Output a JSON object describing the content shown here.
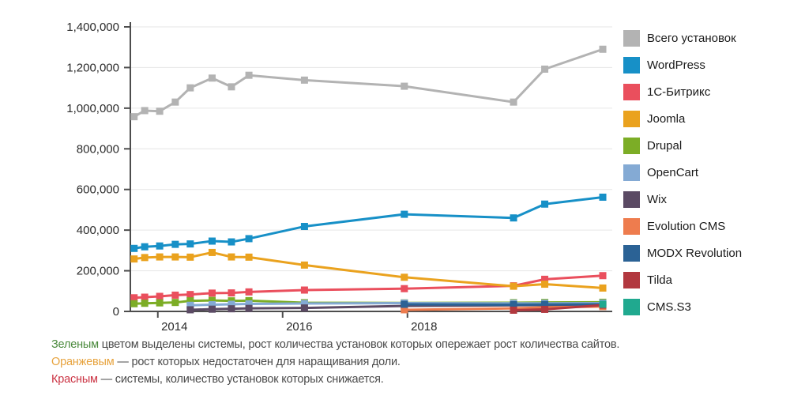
{
  "chart_data": {
    "type": "line",
    "title": "",
    "grid": true,
    "legend_position": "right",
    "xlim": [
      2013.56,
      2021.28
    ],
    "ylim": [
      0,
      1400000
    ],
    "x": [
      2013.62,
      2013.79,
      2014.03,
      2014.28,
      2014.52,
      2014.87,
      2015.18,
      2015.46,
      2016.35,
      2017.95,
      2019.7,
      2020.2,
      2021.13
    ],
    "x_axis": {
      "ticks": [
        {
          "year": 2014,
          "label": "2014"
        },
        {
          "year": 2016,
          "label": "2016"
        },
        {
          "year": 2018,
          "label": "2018"
        }
      ]
    },
    "y_axis": {
      "max": 1400000,
      "ticks": [
        {
          "value": 0,
          "label": "0"
        },
        {
          "value": 200000,
          "label": "200,000"
        },
        {
          "value": 400000,
          "label": "400,000"
        },
        {
          "value": 600000,
          "label": "600,000"
        },
        {
          "value": 800000,
          "label": "800,000"
        },
        {
          "value": 1000000,
          "label": "1,000,000"
        },
        {
          "value": 1200000,
          "label": "1,200,000"
        },
        {
          "value": 1400000,
          "label": "1,400,000"
        }
      ]
    },
    "series": [
      {
        "name": "Всего установок",
        "color": "#b3b3b3",
        "values": [
          958000,
          988000,
          985000,
          1030000,
          1100000,
          1148000,
          1105000,
          1162000,
          1138000,
          1108000,
          1030000,
          1192000,
          1290000
        ]
      },
      {
        "name": "WordPress",
        "color": "#1790c7",
        "values": [
          310000,
          318000,
          322000,
          330000,
          332000,
          346000,
          342000,
          358000,
          418000,
          478000,
          460000,
          528000,
          562000
        ]
      },
      {
        "name": "1С-Битрикс",
        "color": "#ea4f5d",
        "values": [
          67000,
          70000,
          74000,
          80000,
          83000,
          90000,
          91000,
          96000,
          105000,
          112000,
          126000,
          158000,
          176000
        ]
      },
      {
        "name": "Joomla",
        "color": "#eaa21e",
        "values": [
          258000,
          265000,
          268000,
          268000,
          267000,
          290000,
          268000,
          267000,
          228000,
          168000,
          124000,
          134000,
          115000
        ]
      },
      {
        "name": "Drupal",
        "color": "#7cad26",
        "values": [
          38000,
          40000,
          42000,
          44000,
          52000,
          54000,
          52000,
          53000,
          43000,
          42000,
          43000,
          44000,
          45000
        ]
      },
      {
        "name": "OpenCart",
        "color": "#84aad4",
        "values": [
          null,
          null,
          null,
          null,
          30000,
          33000,
          35000,
          37000,
          39000,
          41000,
          40000,
          40000,
          41000
        ]
      },
      {
        "name": "Wix",
        "color": "#5b4a64",
        "values": [
          null,
          null,
          null,
          null,
          8000,
          11000,
          13000,
          15000,
          17000,
          27000,
          30000,
          31000,
          32000
        ]
      },
      {
        "name": "Evolution CMS",
        "color": "#ee7c4e",
        "values": [
          null,
          null,
          null,
          null,
          null,
          null,
          null,
          null,
          null,
          8000,
          15000,
          20000,
          24000
        ]
      },
      {
        "name": "MODX Revolution",
        "color": "#2b6295",
        "values": [
          null,
          null,
          null,
          null,
          null,
          null,
          null,
          null,
          null,
          35000,
          33000,
          34000,
          35000
        ]
      },
      {
        "name": "Tilda",
        "color": "#b2383f",
        "values": [
          null,
          null,
          null,
          null,
          null,
          null,
          null,
          null,
          null,
          null,
          6000,
          10000,
          31000
        ]
      },
      {
        "name": "CMS.S3",
        "color": "#20a98f",
        "values": [
          null,
          null,
          null,
          null,
          null,
          null,
          null,
          null,
          null,
          null,
          null,
          null,
          35000
        ]
      }
    ]
  },
  "footer": {
    "lines": [
      {
        "keyword": "Зеленым",
        "color": "#4a8a3c",
        "text": "цветом выделены системы, рост количества установок которых опережает рост количества сайтов."
      },
      {
        "keyword": "Оранжевым",
        "color": "#e7a33e",
        "text": "— рост которых недостаточен для наращивания доли."
      },
      {
        "keyword": "Красным",
        "color": "#cb3343",
        "text": "— системы, количество установок которых снижается."
      }
    ]
  }
}
